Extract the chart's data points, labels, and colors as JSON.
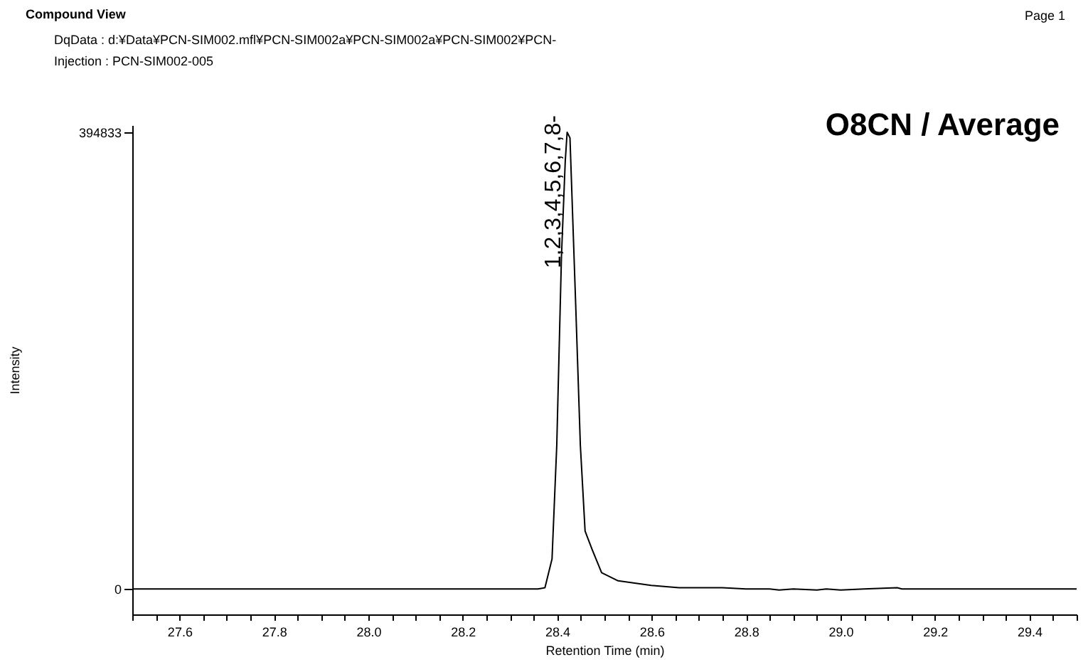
{
  "chart_data": {
    "type": "line",
    "title": "O8CN / Average",
    "xlabel": "Retention Time (min)",
    "ylabel": "Intensity",
    "annotations": [
      "Compound View",
      "Page 1",
      "DqData : d:¥Data¥PCN-SIM002.mfl¥PCN-SIM002a¥PCN-SIM002a¥PCN-SIM002¥PCN-",
      "Injection : PCN-SIM002-005",
      {
        "text": "1,2,3,4,5,6,7,8-",
        "x": 28.421,
        "y": 394833
      }
    ],
    "series": [
      {
        "color": "#000000",
        "x": [
          27.5,
          28.0,
          28.359,
          28.374,
          28.389,
          28.399,
          28.409,
          28.417,
          28.421,
          28.427,
          28.439,
          28.449,
          28.459,
          28.474,
          28.494,
          28.529,
          28.599,
          28.658,
          28.7,
          28.75,
          28.8,
          28.85,
          28.87,
          28.9,
          28.95,
          28.97,
          29.0,
          29.05,
          29.12,
          29.13,
          29.2,
          29.5
        ],
        "values": [
          0,
          0,
          0,
          1000,
          26000,
          124000,
          288000,
          370000,
          394833,
          390000,
          247000,
          124000,
          50000,
          34000,
          14000,
          7000,
          3000,
          1000,
          1000,
          1000,
          0,
          0,
          -1000,
          0,
          -1000,
          0,
          -1000,
          0,
          1000,
          0,
          0,
          0
        ]
      }
    ],
    "xlim": [
      27.5,
      29.5
    ],
    "ylim": [
      -22000,
      401000
    ],
    "xticks": [
      {
        "value": 27.5,
        "label": null
      },
      {
        "value": 27.55,
        "label": null
      },
      27.6,
      {
        "value": 27.65,
        "label": null
      },
      {
        "value": 27.7,
        "label": null
      },
      {
        "value": 27.75,
        "label": null
      },
      27.8,
      {
        "value": 27.85,
        "label": null
      },
      {
        "value": 27.9,
        "label": null
      },
      {
        "value": 27.95,
        "label": null
      },
      {
        "value": 28,
        "label": "28.0"
      },
      {
        "value": 28.05,
        "label": null
      },
      {
        "value": 28.1,
        "label": null
      },
      {
        "value": 28.15,
        "label": null
      },
      28.2,
      {
        "value": 28.25,
        "label": null
      },
      {
        "value": 28.3,
        "label": null
      },
      {
        "value": 28.35,
        "label": null
      },
      28.4,
      {
        "value": 28.45,
        "label": null
      },
      {
        "value": 28.5,
        "label": null
      },
      {
        "value": 28.55,
        "label": null
      },
      28.6,
      {
        "value": 28.65,
        "label": null
      },
      {
        "value": 28.7,
        "label": null
      },
      {
        "value": 28.75,
        "label": null
      },
      28.8,
      {
        "value": 28.85,
        "label": null
      },
      {
        "value": 28.9,
        "label": null
      },
      {
        "value": 28.95,
        "label": null
      },
      {
        "value": 29,
        "label": "29.0"
      },
      {
        "value": 29.05,
        "label": null
      },
      {
        "value": 29.1,
        "label": null
      },
      {
        "value": 29.15,
        "label": null
      },
      29.2,
      {
        "value": 29.25,
        "label": null
      },
      {
        "value": 29.3,
        "label": null
      },
      {
        "value": 29.35,
        "label": null
      },
      29.4,
      {
        "value": 29.45,
        "label": null
      },
      {
        "value": 29.5,
        "label": null
      }
    ],
    "yticks": [
      0,
      394833
    ],
    "grid": false
  }
}
